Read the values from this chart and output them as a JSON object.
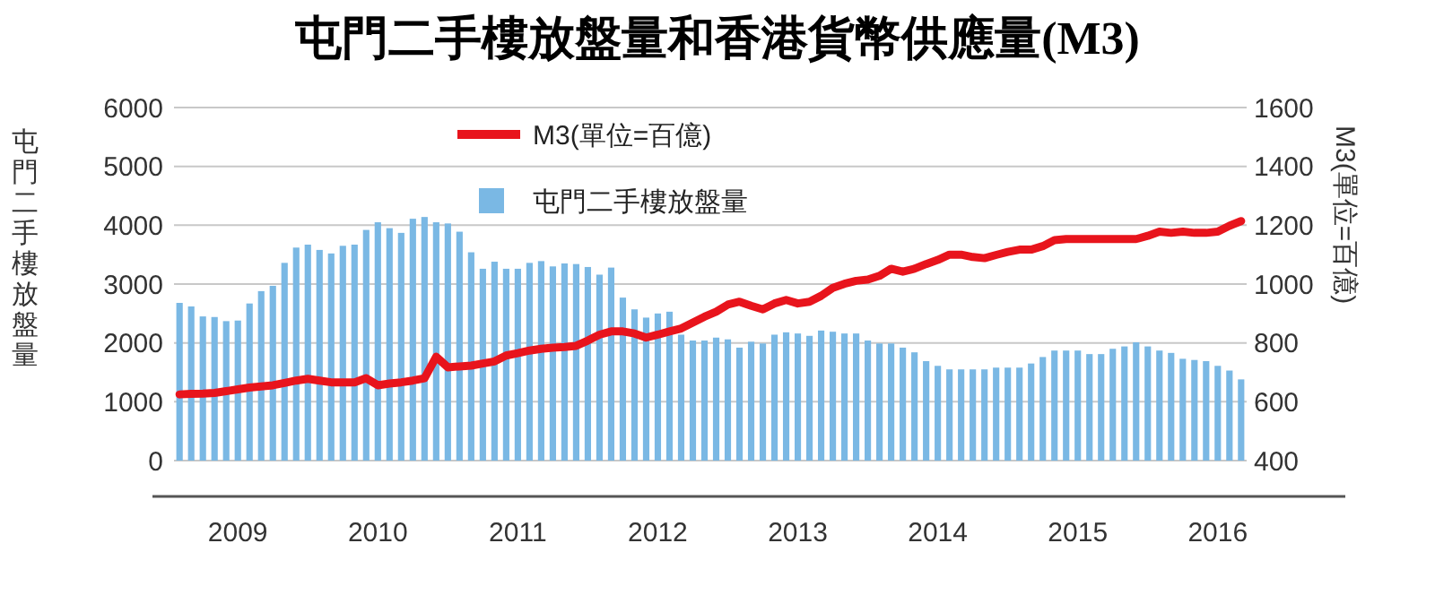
{
  "chart_data": {
    "type": "bar",
    "title": "屯門二手樓放盤量和香港貨幣供應量(M3)",
    "ylabel": "屯門二手樓放盤量",
    "y2label": "M3(單位=百億)",
    "categories": [
      null,
      null,
      null,
      null,
      null,
      "2009",
      null,
      null,
      null,
      null,
      null,
      null,
      null,
      null,
      null,
      null,
      null,
      "2010",
      null,
      null,
      null,
      null,
      null,
      null,
      null,
      null,
      null,
      null,
      null,
      "2011",
      null,
      null,
      null,
      null,
      null,
      null,
      null,
      null,
      null,
      null,
      null,
      "2012",
      null,
      null,
      null,
      null,
      null,
      null,
      null,
      null,
      null,
      null,
      null,
      "2013",
      null,
      null,
      null,
      null,
      null,
      null,
      null,
      null,
      null,
      null,
      null,
      "2014",
      null,
      null,
      null,
      null,
      null,
      null,
      null,
      null,
      null,
      null,
      null,
      "2015",
      null,
      null,
      null,
      null,
      null,
      null,
      null,
      null,
      null,
      null,
      null,
      "2016",
      null,
      null
    ],
    "series": [
      {
        "name": "屯門二手樓放盤量",
        "color": "#7ab8e4",
        "values": [
          2680,
          2620,
          2450,
          2440,
          2370,
          2380,
          2670,
          2880,
          2970,
          3360,
          3620,
          3670,
          3580,
          3520,
          3650,
          3670,
          3920,
          4050,
          3950,
          3870,
          4110,
          4140,
          4050,
          4030,
          3890,
          3540,
          3260,
          3380,
          3260,
          3260,
          3360,
          3390,
          3300,
          3350,
          3340,
          3290,
          3160,
          3280,
          2770,
          2570,
          2430,
          2500,
          2530,
          2140,
          2040,
          2040,
          2090,
          2060,
          1920,
          2020,
          1990,
          2140,
          2180,
          2160,
          2120,
          2210,
          2190,
          2160,
          2160,
          2040,
          1990,
          1990,
          1920,
          1840,
          1690,
          1610,
          1550,
          1550,
          1550,
          1550,
          1580,
          1580,
          1580,
          1650,
          1760,
          1870,
          1870,
          1870,
          1810,
          1810,
          1900,
          1940,
          2010,
          1940,
          1870,
          1830,
          1730,
          1710,
          1690,
          1610,
          1530,
          1380
        ]
      },
      {
        "name": "M3(單位=百億)",
        "type": "line",
        "axis": "y2",
        "color": "#e8141c",
        "values": [
          625,
          627,
          628,
          630,
          636,
          642,
          648,
          652,
          656,
          664,
          672,
          678,
          672,
          666,
          666,
          666,
          680,
          656,
          662,
          666,
          672,
          680,
          753,
          717,
          720,
          723,
          730,
          737,
          757,
          765,
          774,
          780,
          784,
          786,
          790,
          808,
          828,
          839,
          839,
          832,
          818,
          828,
          839,
          849,
          869,
          889,
          906,
          930,
          940,
          926,
          914,
          934,
          946,
          934,
          940,
          960,
          987,
          1001,
          1011,
          1015,
          1028,
          1052,
          1042,
          1052,
          1068,
          1082,
          1100,
          1100,
          1092,
          1088,
          1099,
          1109,
          1117,
          1117,
          1129,
          1149,
          1153,
          1153,
          1153,
          1153,
          1153,
          1153,
          1153,
          1164,
          1178,
          1174,
          1178,
          1174,
          1174,
          1178,
          1198,
          1214
        ]
      }
    ],
    "ylim": [
      0,
      6000
    ],
    "yticks": [
      0,
      1000,
      2000,
      3000,
      4000,
      5000,
      6000
    ],
    "y2lim": [
      400,
      1600
    ],
    "y2ticks": [
      400,
      600,
      800,
      1000,
      1200,
      1400,
      1600
    ],
    "grid": "y",
    "legend": "top"
  }
}
